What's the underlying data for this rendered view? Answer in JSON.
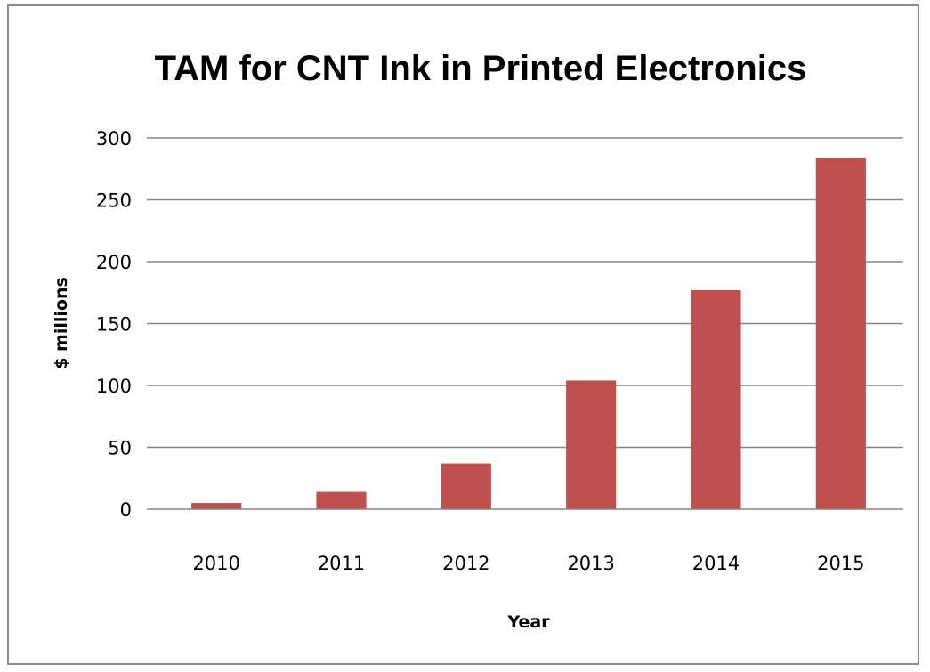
{
  "chart_data": {
    "type": "bar",
    "title": "TAM for CNT Ink in Printed Electronics",
    "xlabel": "Year",
    "ylabel": "$ millions",
    "categories": [
      "2010",
      "2011",
      "2012",
      "2013",
      "2014",
      "2015"
    ],
    "values": [
      5,
      14,
      37,
      104,
      177,
      284
    ],
    "ylim": [
      0,
      300
    ],
    "yticks": [
      "0",
      "50",
      "100",
      "150",
      "200",
      "250",
      "300"
    ],
    "grid": true,
    "legend": "none",
    "bar_color": "#c0504d",
    "gridline_color": "#868686"
  }
}
